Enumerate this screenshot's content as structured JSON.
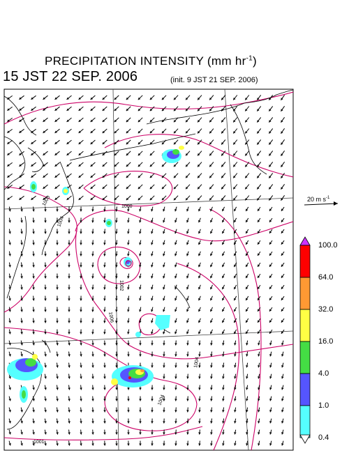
{
  "header": {
    "title_text": "PRECIPITATION INTENSITY (mm hr",
    "title_exp": "-1",
    "title_close": ")",
    "valid_time": "15 JST 22 SEP. 2006",
    "init_time": "(init. 9 JST 21 SEP. 2006)"
  },
  "wind_reference": {
    "label": "20 m s",
    "exp": "-1"
  },
  "colorbar": {
    "labels": [
      "100.0",
      "64.0",
      "32.0",
      "16.0",
      "4.0",
      "1.0",
      "0.4"
    ],
    "colors": [
      "#ff0000",
      "#ff9933",
      "#ffff44",
      "#44dd44",
      "#5555ff",
      "#55ffff"
    ],
    "over_color": "#cc33ff",
    "under_color": "#ffffff"
  },
  "isobar_labels": [
    "1004",
    "1000",
    "1000",
    "1002",
    "1006",
    "1004",
    "1004",
    "1001"
  ],
  "colors": {
    "isobar": "#cc0066",
    "coast": "#000000",
    "grid": "#000000",
    "arrow": "#000000"
  }
}
